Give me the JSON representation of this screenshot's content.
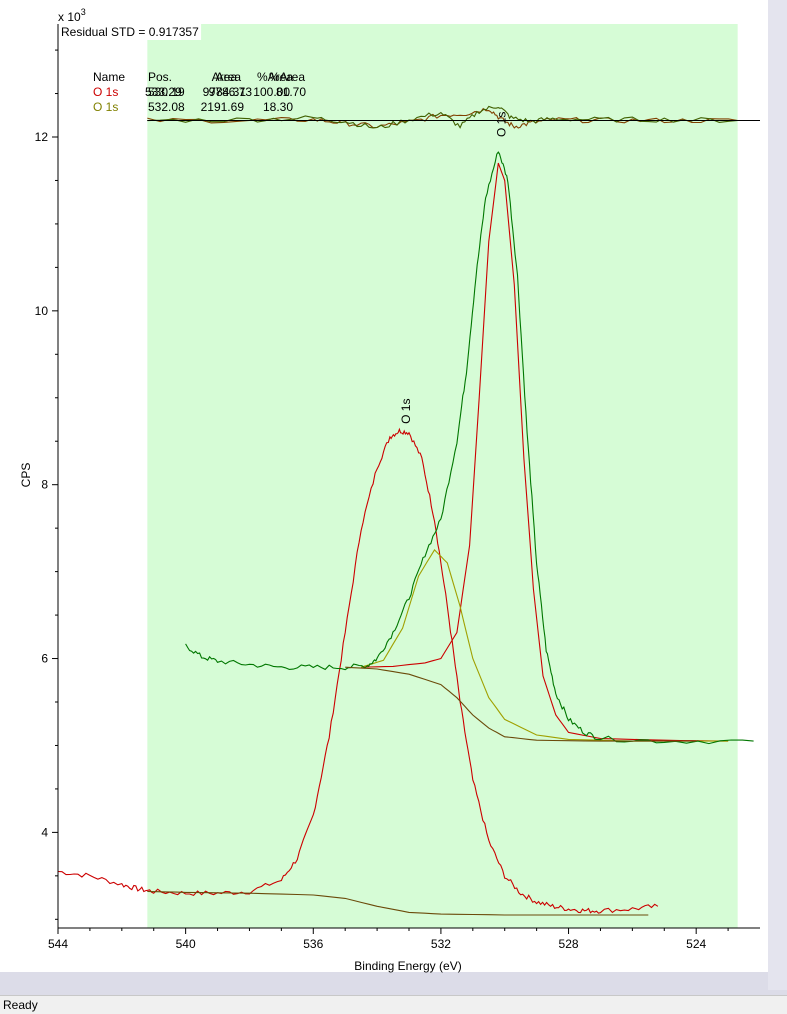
{
  "status": {
    "text": "Ready"
  },
  "chart_data": {
    "type": "line",
    "xlabel": "Binding Energy (eV)",
    "ylabel": "CPS",
    "y_multiplier": "x 10",
    "y_multiplier_exp": "3",
    "xlim": [
      544,
      522
    ],
    "ylim": [
      2.9,
      13.3
    ],
    "x_ticks": [
      544,
      540,
      536,
      532,
      528,
      524
    ],
    "y_ticks": [
      4,
      6,
      8,
      10,
      12
    ],
    "shaded_region": [
      541.2,
      522.7
    ],
    "residual": "Residual STD = 0.917357",
    "table": {
      "headers": [
        "Name",
        "Pos.",
        "Area",
        "%Area"
      ],
      "rows": [
        {
          "name": "O 1s",
          "pos": "533.29",
          "area": "9784.31",
          "pct": "100.00",
          "color": "#cc0000"
        },
        {
          "name": "O 1s",
          "pos": "530.19",
          "area": "9786.73",
          "pct": "81.70",
          "color": "#cc0000"
        },
        {
          "name": "O 1s",
          "pos": "532.08",
          "area": "2191.69",
          "pct": "18.30",
          "color": "#808000"
        }
      ]
    },
    "peak_labels": [
      {
        "text": "O 1s",
        "x": 533.1,
        "y": 8.7
      },
      {
        "text": "O 1s",
        "x": 530.1,
        "y": 12.0
      }
    ],
    "series": [
      {
        "color": "#cc0000",
        "points": [
          [
            544,
            3.55
          ],
          [
            543,
            3.5
          ],
          [
            542,
            3.4
          ],
          [
            541.5,
            3.35
          ],
          [
            541,
            3.32
          ],
          [
            540,
            3.3
          ],
          [
            539,
            3.3
          ],
          [
            538,
            3.32
          ],
          [
            537,
            3.45
          ],
          [
            536.5,
            3.7
          ],
          [
            536,
            4.2
          ],
          [
            535.5,
            5.1
          ],
          [
            535,
            6.3
          ],
          [
            534.5,
            7.5
          ],
          [
            534,
            8.2
          ],
          [
            533.6,
            8.55
          ],
          [
            533.3,
            8.62
          ],
          [
            533,
            8.6
          ],
          [
            532.6,
            8.3
          ],
          [
            532.2,
            7.6
          ],
          [
            531.8,
            6.6
          ],
          [
            531.4,
            5.5
          ],
          [
            531,
            4.6
          ],
          [
            530.5,
            3.9
          ],
          [
            530,
            3.5
          ],
          [
            529.5,
            3.3
          ],
          [
            529,
            3.2
          ],
          [
            528.5,
            3.15
          ],
          [
            528,
            3.12
          ],
          [
            527.5,
            3.1
          ],
          [
            527,
            3.1
          ],
          [
            526,
            3.12
          ],
          [
            525.2,
            3.15
          ]
        ]
      },
      {
        "color": "#cc0000",
        "points": [
          [
            534.5,
            5.9
          ],
          [
            533.5,
            5.91
          ],
          [
            532.5,
            5.95
          ],
          [
            532,
            6.0
          ],
          [
            531.5,
            6.3
          ],
          [
            531.1,
            7.3
          ],
          [
            530.8,
            9.0
          ],
          [
            530.5,
            10.8
          ],
          [
            530.2,
            11.7
          ],
          [
            530.0,
            11.5
          ],
          [
            529.7,
            10.3
          ],
          [
            529.4,
            8.3
          ],
          [
            529.1,
            6.8
          ],
          [
            528.8,
            5.8
          ],
          [
            528.4,
            5.35
          ],
          [
            528,
            5.15
          ],
          [
            527,
            5.08
          ],
          [
            525,
            5.06
          ],
          [
            523,
            5.05
          ]
        ]
      },
      {
        "color": "#a0a000",
        "points": [
          [
            534.5,
            5.9
          ],
          [
            533.8,
            5.98
          ],
          [
            533.2,
            6.35
          ],
          [
            532.7,
            6.95
          ],
          [
            532.2,
            7.25
          ],
          [
            531.8,
            7.1
          ],
          [
            531.4,
            6.6
          ],
          [
            531,
            6.0
          ],
          [
            530.5,
            5.55
          ],
          [
            530,
            5.3
          ],
          [
            529,
            5.12
          ],
          [
            528,
            5.07
          ],
          [
            526,
            5.05
          ],
          [
            523,
            5.05
          ]
        ]
      },
      {
        "color": "#007700",
        "points": [
          [
            540,
            6.15
          ],
          [
            539.5,
            6.02
          ],
          [
            539,
            5.97
          ],
          [
            538,
            5.93
          ],
          [
            537,
            5.9
          ],
          [
            536,
            5.9
          ],
          [
            535,
            5.9
          ],
          [
            534.3,
            5.92
          ],
          [
            534,
            6.0
          ],
          [
            533.5,
            6.3
          ],
          [
            533,
            6.7
          ],
          [
            532.5,
            7.2
          ],
          [
            532,
            7.6
          ],
          [
            531.5,
            8.5
          ],
          [
            531.2,
            9.3
          ],
          [
            530.9,
            10.4
          ],
          [
            530.6,
            11.3
          ],
          [
            530.2,
            11.85
          ],
          [
            529.9,
            11.5
          ],
          [
            529.6,
            10.4
          ],
          [
            529.3,
            8.6
          ],
          [
            529,
            7.1
          ],
          [
            528.7,
            6.1
          ],
          [
            528.4,
            5.6
          ],
          [
            528,
            5.3
          ],
          [
            527.5,
            5.15
          ],
          [
            527,
            5.08
          ],
          [
            525,
            5.05
          ],
          [
            522.2,
            5.05
          ]
        ]
      },
      {
        "color": "#6b4a0a",
        "points": [
          [
            535,
            5.9
          ],
          [
            534,
            5.88
          ],
          [
            533,
            5.82
          ],
          [
            532,
            5.7
          ],
          [
            531.5,
            5.55
          ],
          [
            531,
            5.35
          ],
          [
            530.5,
            5.2
          ],
          [
            530,
            5.1
          ],
          [
            529,
            5.06
          ],
          [
            527,
            5.05
          ],
          [
            524,
            5.05
          ]
        ]
      },
      {
        "color": "#6b4a0a",
        "points": [
          [
            541.2,
            3.32
          ],
          [
            540,
            3.31
          ],
          [
            538,
            3.3
          ],
          [
            536,
            3.28
          ],
          [
            535,
            3.24
          ],
          [
            534,
            3.15
          ],
          [
            533,
            3.08
          ],
          [
            532,
            3.06
          ],
          [
            530,
            3.05
          ],
          [
            528,
            3.05
          ],
          [
            525.5,
            3.05
          ]
        ]
      },
      {
        "color": "#804000",
        "points": [
          [
            541.2,
            12.19
          ],
          [
            538,
            12.19
          ],
          [
            536,
            12.2
          ],
          [
            535,
            12.16
          ],
          [
            534,
            12.12
          ],
          [
            533,
            12.17
          ],
          [
            532,
            12.25
          ],
          [
            531.2,
            12.27
          ],
          [
            530.5,
            12.33
          ],
          [
            530.1,
            12.2
          ],
          [
            529.7,
            12.12
          ],
          [
            529.2,
            12.16
          ],
          [
            528.5,
            12.2
          ],
          [
            527,
            12.19
          ],
          [
            525,
            12.19
          ],
          [
            522.7,
            12.19
          ]
        ]
      },
      {
        "color": "#406000",
        "points": [
          [
            541.2,
            12.19
          ],
          [
            538,
            12.2
          ],
          [
            536,
            12.22
          ],
          [
            535,
            12.18
          ],
          [
            534,
            12.1
          ],
          [
            533,
            12.2
          ],
          [
            532,
            12.28
          ],
          [
            531.4,
            12.12
          ],
          [
            530.8,
            12.3
          ],
          [
            530.2,
            12.36
          ],
          [
            529.8,
            12.22
          ],
          [
            529.2,
            12.18
          ],
          [
            528.5,
            12.21
          ],
          [
            527,
            12.2
          ],
          [
            525,
            12.2
          ],
          [
            522.7,
            12.19
          ]
        ]
      },
      {
        "color": "#000000",
        "points": [
          [
            541.2,
            12.19
          ],
          [
            522,
            12.19
          ]
        ]
      }
    ]
  }
}
